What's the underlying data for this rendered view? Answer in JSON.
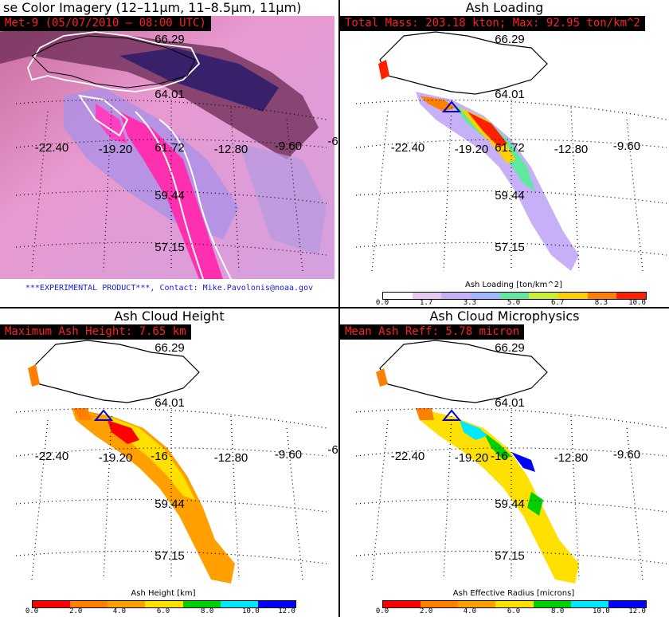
{
  "panels": {
    "tl": {
      "title": "se Color Imagery (12–11μm, 11–8.5μm, 11μm)",
      "badge": "Met-9  (05/07/2010 – 08:00 UTC)",
      "note": "***EXPERIMENTAL PRODUCT***, Contact: Mike.Pavolonis@noaa.gov"
    },
    "tr": {
      "title": "Ash Loading",
      "badge": "Total Mass: 203.18 kton; Max: 92.95 ton/km^2",
      "colorbar_title": "Ash Loading [ton/km^2]",
      "ticks": [
        "0.0",
        "1.7",
        "3.3",
        "5.0",
        "6.7",
        "8.3",
        "10.0"
      ],
      "colors": [
        "#ffffff",
        "#e8c8f0",
        "#c8b0f8",
        "#a0b8ff",
        "#60e8a0",
        "#c8f030",
        "#ffd000",
        "#ff8000",
        "#ff2000"
      ]
    },
    "bl": {
      "title": "Ash Cloud Height",
      "badge": "Maximum Ash Height: 7.65 km",
      "colorbar_title": "Ash Height [km]",
      "ticks": [
        "0.0",
        "2.0",
        "4.0",
        "6.0",
        "8.0",
        "10.0",
        "12.0"
      ],
      "colors": [
        "#ff0000",
        "#ff8000",
        "#ffa000",
        "#ffe000",
        "#00d000",
        "#00e8ff",
        "#0000ff"
      ]
    },
    "br": {
      "title": "Ash Cloud Microphysics",
      "badge": "Mean Ash Reff: 5.78 micron",
      "colorbar_title": "Ash Effective Radius [microns]",
      "ticks": [
        "0.0",
        "2.0",
        "4.0",
        "6.0",
        "8.0",
        "10.0",
        "12.0"
      ],
      "colors": [
        "#ff0000",
        "#ff8000",
        "#ffa000",
        "#ffe000",
        "#00d000",
        "#00e8ff",
        "#0000ff"
      ]
    }
  },
  "grid_labels": {
    "lat": [
      "66.29",
      "64.01",
      "61.72",
      "59.44",
      "57.15"
    ],
    "lon": [
      "-22.40",
      "-19.20",
      "-16",
      "-12.80",
      "-9.60",
      "-6"
    ]
  }
}
